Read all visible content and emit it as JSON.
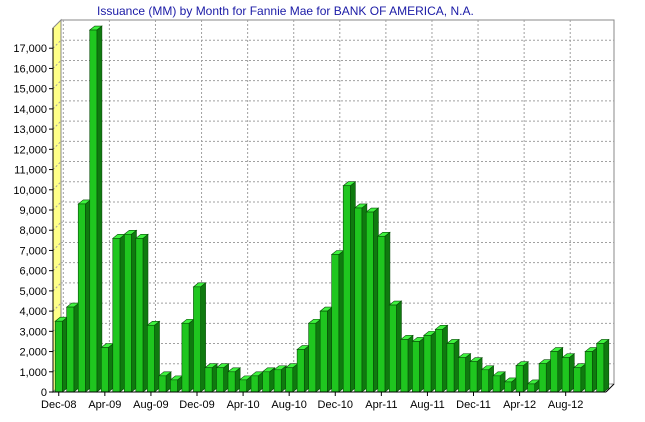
{
  "chart_data": {
    "type": "bar",
    "title": "Issuance (MM) by Month for Fannie Mae for BANK OF AMERICA, N.A.",
    "xlabel": "",
    "ylabel": "",
    "ylim": [
      0,
      18000
    ],
    "yticks": [
      0,
      1000,
      2000,
      3000,
      4000,
      5000,
      6000,
      7000,
      8000,
      9000,
      10000,
      11000,
      12000,
      13000,
      14000,
      15000,
      16000,
      17000
    ],
    "ytick_labels": [
      "0",
      "1,000",
      "2,000",
      "3,000",
      "4,000",
      "5,000",
      "6,000",
      "7,000",
      "8,000",
      "9,000",
      "10,000",
      "11,000",
      "12,000",
      "13,000",
      "14,000",
      "15,000",
      "16,000",
      "17,000"
    ],
    "x_tick_labels": [
      {
        "index": 0,
        "label": "Dec-08"
      },
      {
        "index": 4,
        "label": "Apr-09"
      },
      {
        "index": 8,
        "label": "Aug-09"
      },
      {
        "index": 12,
        "label": "Dec-09"
      },
      {
        "index": 16,
        "label": "Apr-10"
      },
      {
        "index": 20,
        "label": "Aug-10"
      },
      {
        "index": 24,
        "label": "Dec-10"
      },
      {
        "index": 28,
        "label": "Apr-11"
      },
      {
        "index": 32,
        "label": "Aug-11"
      },
      {
        "index": 36,
        "label": "Dec-11"
      },
      {
        "index": 40,
        "label": "Apr-12"
      },
      {
        "index": 44,
        "label": "Aug-12"
      }
    ],
    "categories": [
      "Dec-08",
      "Jan-09",
      "Feb-09",
      "Mar-09",
      "Apr-09",
      "May-09",
      "Jun-09",
      "Jul-09",
      "Aug-09",
      "Sep-09",
      "Oct-09",
      "Nov-09",
      "Dec-09",
      "Jan-10",
      "Feb-10",
      "Mar-10",
      "Apr-10",
      "May-10",
      "Jun-10",
      "Jul-10",
      "Aug-10",
      "Sep-10",
      "Oct-10",
      "Nov-10",
      "Dec-10",
      "Jan-11",
      "Feb-11",
      "Mar-11",
      "Apr-11",
      "May-11",
      "Jun-11",
      "Jul-11",
      "Aug-11",
      "Sep-11",
      "Oct-11",
      "Nov-11",
      "Dec-11",
      "Jan-12",
      "Feb-12",
      "Mar-12",
      "Apr-12",
      "May-12",
      "Jun-12",
      "Jul-12",
      "Aug-12",
      "Sep-12",
      "Oct-12",
      "Nov-12"
    ],
    "values": [
      3500,
      4200,
      9300,
      17900,
      2200,
      7600,
      7800,
      7600,
      3300,
      800,
      600,
      3400,
      5200,
      1200,
      1200,
      1000,
      600,
      800,
      1000,
      1100,
      1200,
      2100,
      3400,
      4000,
      6800,
      10200,
      9100,
      8900,
      7700,
      4300,
      2600,
      2500,
      2800,
      3100,
      2400,
      1700,
      1500,
      1100,
      800,
      500,
      1300,
      400,
      1400,
      2000,
      1700,
      1200,
      2000,
      2400
    ],
    "grid": true,
    "legend": "none",
    "colors": {
      "bar_face": "#1fc61f",
      "bar_top": "#3ff23f",
      "bar_side": "#0f7a0f",
      "bar_edge": "#064d06",
      "plot_background": "#ffffff",
      "grid": "#a0a0a0",
      "left_wall": "#ffff88",
      "title": "#1a1aa6"
    }
  }
}
